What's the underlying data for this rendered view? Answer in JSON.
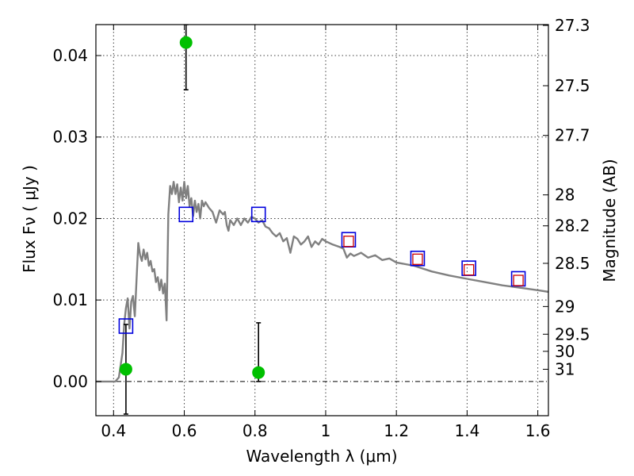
{
  "chart_data": {
    "type": "scatter",
    "xlabel": "Wavelength  λ (μm)",
    "ylabel": "Flux  Fν  ( μJy )",
    "y2label": "Magnitude (AB)",
    "xlim": [
      0.35,
      1.63
    ],
    "ylim": [
      -0.0042,
      0.0438
    ],
    "grid": true,
    "x_ticks": [
      0.4,
      0.6,
      0.8,
      1,
      1.2,
      1.4,
      1.6
    ],
    "x_tick_labels": [
      "0.4",
      "0.6",
      "0.8",
      "1",
      "1.2",
      "1.4",
      "1.6"
    ],
    "y_ticks": [
      0.0,
      0.01,
      0.02,
      0.03,
      0.04
    ],
    "y_tick_labels": [
      "0.00",
      "0.01",
      "0.02",
      "0.03",
      "0.04"
    ],
    "y2_ticks": [
      {
        "label": "27.3",
        "flux": 0.0437
      },
      {
        "label": "27.5",
        "flux": 0.0363
      },
      {
        "label": "27.7",
        "flux": 0.0302
      },
      {
        "label": "28",
        "flux": 0.0229
      },
      {
        "label": "28.2",
        "flux": 0.0191
      },
      {
        "label": "28.5",
        "flux": 0.0145
      },
      {
        "label": "29",
        "flux": 0.0092
      },
      {
        "label": "29.5",
        "flux": 0.0058
      },
      {
        "label": "30",
        "flux": 0.0037
      },
      {
        "label": "31",
        "flux": 0.0015
      }
    ],
    "series": [
      {
        "kind": "model_sed_line",
        "color": "#808080",
        "x": [
          0.35,
          0.39,
          0.405,
          0.415,
          0.425,
          0.43,
          0.435,
          0.44,
          0.445,
          0.45,
          0.455,
          0.46,
          0.465,
          0.47,
          0.475,
          0.48,
          0.485,
          0.49,
          0.495,
          0.5,
          0.505,
          0.51,
          0.515,
          0.52,
          0.525,
          0.53,
          0.535,
          0.54,
          0.545,
          0.55,
          0.555,
          0.56,
          0.565,
          0.57,
          0.575,
          0.58,
          0.585,
          0.59,
          0.595,
          0.6,
          0.605,
          0.61,
          0.615,
          0.62,
          0.625,
          0.63,
          0.635,
          0.64,
          0.645,
          0.65,
          0.655,
          0.66,
          0.67,
          0.68,
          0.69,
          0.7,
          0.71,
          0.715,
          0.72,
          0.725,
          0.73,
          0.74,
          0.75,
          0.76,
          0.77,
          0.78,
          0.79,
          0.8,
          0.81,
          0.82,
          0.83,
          0.84,
          0.85,
          0.86,
          0.87,
          0.88,
          0.89,
          0.9,
          0.91,
          0.92,
          0.93,
          0.94,
          0.95,
          0.96,
          0.97,
          0.98,
          0.99,
          1.0,
          1.02,
          1.04,
          1.05,
          1.06,
          1.07,
          1.08,
          1.1,
          1.12,
          1.14,
          1.16,
          1.18,
          1.2,
          1.25,
          1.3,
          1.35,
          1.4,
          1.45,
          1.5,
          1.55,
          1.6,
          1.63
        ],
        "y": [
          0.0,
          0.0,
          0.0,
          0.0005,
          0.0035,
          0.007,
          0.009,
          0.0102,
          0.0065,
          0.0098,
          0.0105,
          0.008,
          0.0125,
          0.017,
          0.0155,
          0.0148,
          0.0162,
          0.015,
          0.0158,
          0.0142,
          0.0148,
          0.0135,
          0.0138,
          0.0122,
          0.0128,
          0.0112,
          0.0125,
          0.0108,
          0.012,
          0.0075,
          0.0205,
          0.024,
          0.023,
          0.0245,
          0.023,
          0.0242,
          0.022,
          0.0238,
          0.0222,
          0.0245,
          0.0225,
          0.024,
          0.0215,
          0.0225,
          0.0203,
          0.0222,
          0.0208,
          0.0218,
          0.02,
          0.0222,
          0.0215,
          0.022,
          0.0213,
          0.0208,
          0.0195,
          0.021,
          0.0205,
          0.0208,
          0.0192,
          0.0185,
          0.0198,
          0.0192,
          0.02,
          0.0192,
          0.02,
          0.0195,
          0.0202,
          0.02,
          0.0195,
          0.0198,
          0.019,
          0.0188,
          0.0182,
          0.0178,
          0.0182,
          0.0172,
          0.0176,
          0.0158,
          0.0178,
          0.0175,
          0.0168,
          0.0172,
          0.0178,
          0.0165,
          0.0172,
          0.0168,
          0.0175,
          0.0172,
          0.0168,
          0.0165,
          0.0163,
          0.0152,
          0.0157,
          0.0154,
          0.0158,
          0.0152,
          0.0155,
          0.0149,
          0.0151,
          0.0146,
          0.0142,
          0.0135,
          0.013,
          0.0126,
          0.0122,
          0.0118,
          0.0115,
          0.0112,
          0.011
        ]
      },
      {
        "kind": "observed_points",
        "color": "#00c000",
        "x": [
          0.435,
          0.605,
          0.81
        ],
        "y": [
          0.0015,
          0.0416,
          0.0011
        ],
        "yerr_low": [
          0.0055,
          0.0058,
          0.0011
        ],
        "yerr_high": [
          0.0055,
          0.0022,
          0.0061
        ]
      },
      {
        "kind": "model_photometry_squares",
        "color": "#0000dd",
        "x": [
          0.435,
          0.605,
          0.81,
          1.065,
          1.26,
          1.405,
          1.545
        ],
        "y": [
          0.0068,
          0.0205,
          0.0205,
          0.0174,
          0.0151,
          0.0139,
          0.0126
        ]
      },
      {
        "kind": "model_photometry_inner_squares",
        "color": "#cc0000",
        "x": [
          1.065,
          1.26,
          1.405,
          1.545
        ],
        "y": [
          0.0172,
          0.015,
          0.0137,
          0.0124
        ]
      }
    ]
  }
}
